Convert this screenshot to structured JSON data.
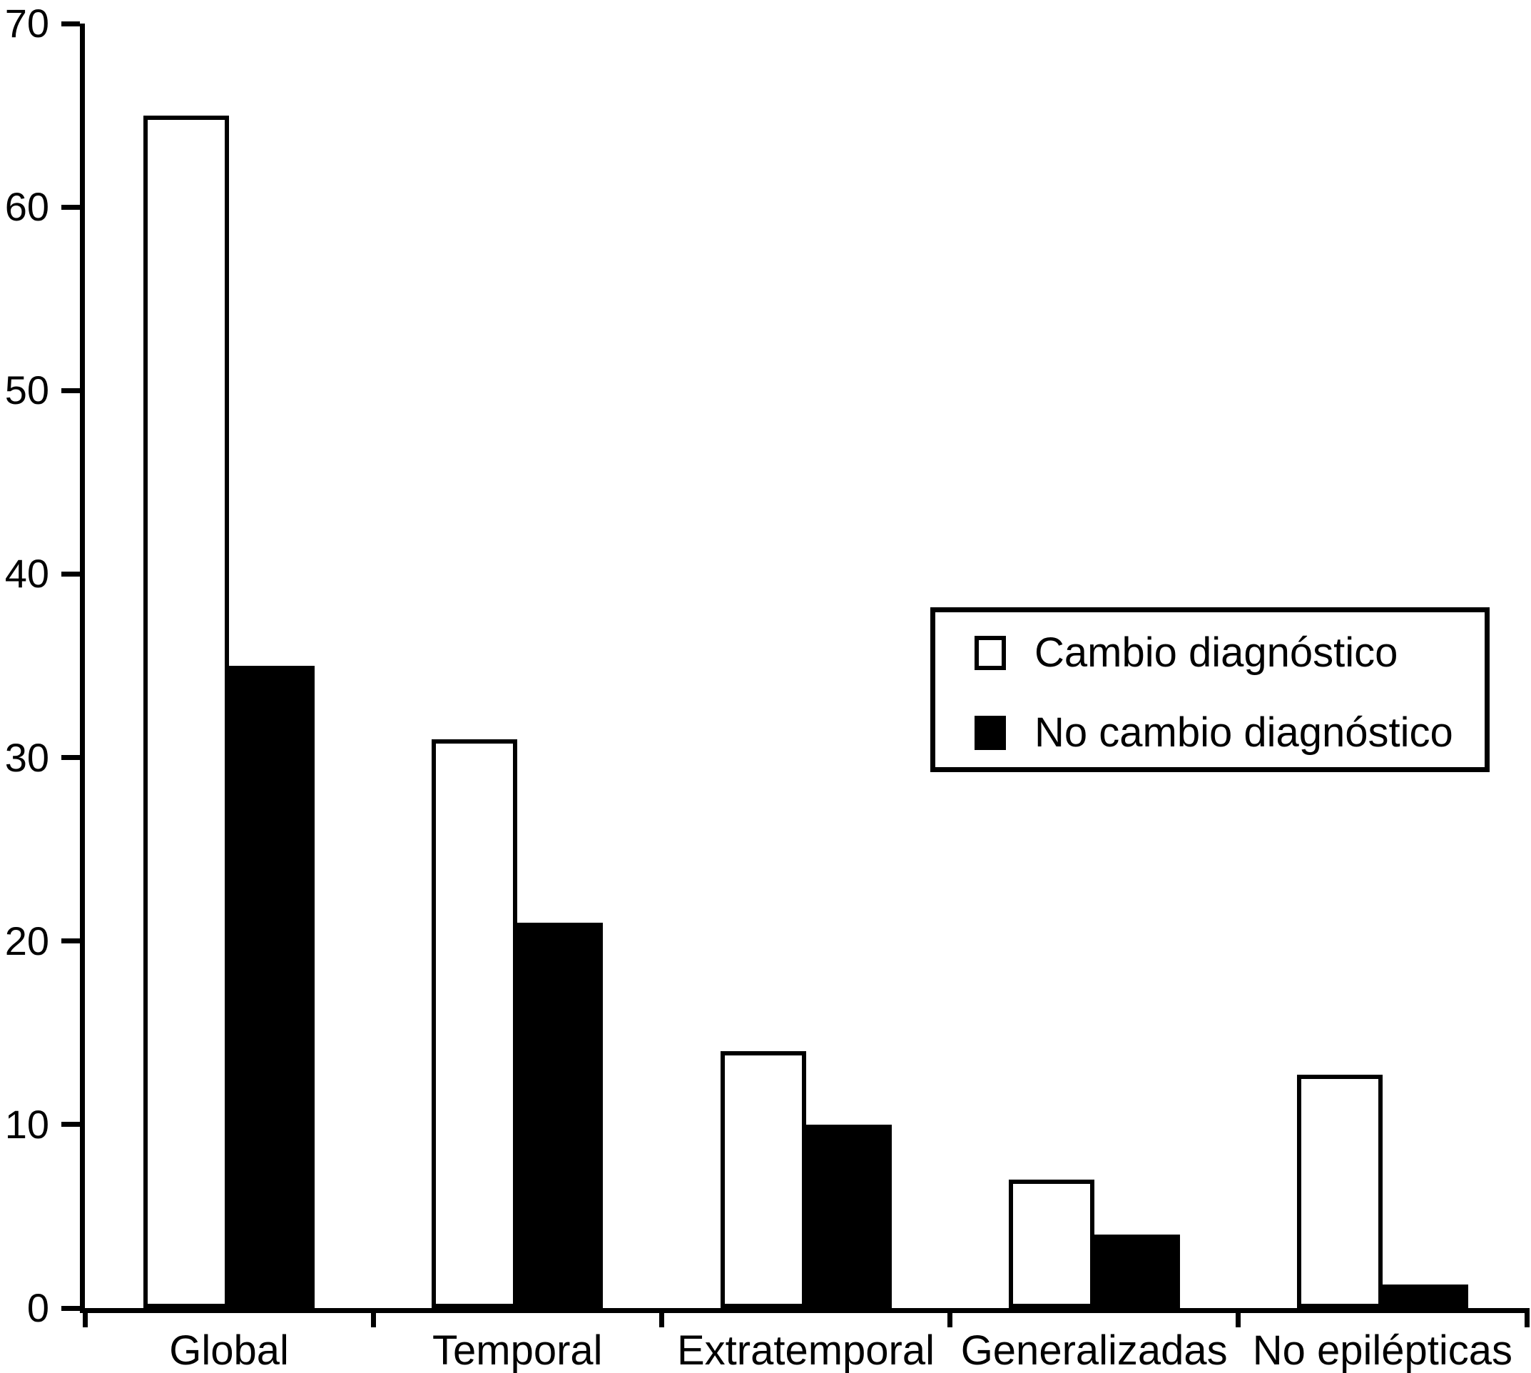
{
  "chart_data": {
    "type": "bar",
    "title": "",
    "xlabel": "",
    "ylabel": "",
    "categories": [
      "Global",
      "Temporal",
      "Extratemporal",
      "Generalizadas",
      "No epilépticas"
    ],
    "series": [
      {
        "name": "Cambio diagnóstico",
        "color": "#ffffff",
        "values": [
          65,
          31,
          14,
          7,
          12.7
        ]
      },
      {
        "name": "No cambio diagnóstico",
        "color": "#000000",
        "values": [
          35,
          21,
          10,
          4,
          1.3
        ]
      }
    ],
    "ylim": [
      0,
      70
    ],
    "yticks": [
      0,
      10,
      20,
      30,
      40,
      50,
      60,
      70
    ],
    "grid": false,
    "legend_position": "upper-right",
    "axis_color": "#000000",
    "bar_border_color": "#000000",
    "background_color": "#ffffff"
  },
  "legend": {
    "items": [
      {
        "label": "Cambio diagnóstico",
        "swatch": "white-square"
      },
      {
        "label": "No cambio diagnóstico",
        "swatch": "black-square"
      }
    ]
  }
}
